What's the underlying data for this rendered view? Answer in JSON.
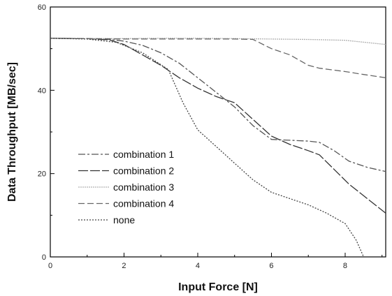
{
  "chart_data": {
    "type": "line",
    "xlabel": "Input Force [N]",
    "ylabel": "Data Throughput [MB/sec]",
    "xlim": [
      0,
      9.1
    ],
    "ylim": [
      0,
      60
    ],
    "xticks": [
      "0",
      "2",
      "4",
      "6",
      "8"
    ],
    "yticks": [
      "0",
      "20",
      "40",
      "60"
    ],
    "grid": false,
    "legend_position": "bottom-left",
    "series": [
      {
        "name": "combination 1",
        "color": "#555555",
        "dash": "10 3 3 3",
        "x": [
          0,
          1.0,
          1.6,
          2.0,
          2.5,
          3.0,
          3.5,
          4.0,
          4.5,
          5.0,
          5.5,
          6.0,
          6.5,
          7.0,
          7.3,
          7.7,
          8.1,
          8.6,
          9.1
        ],
        "y": [
          52.5,
          52.4,
          52.2,
          51.8,
          50.8,
          49.0,
          46.5,
          43.0,
          39.5,
          36.0,
          31.5,
          28.2,
          28.0,
          27.8,
          27.5,
          25.5,
          23.0,
          21.5,
          20.5
        ]
      },
      {
        "name": "combination 2",
        "color": "#333333",
        "dash": "14 3",
        "x": [
          0,
          1.0,
          1.6,
          2.0,
          2.5,
          3.0,
          3.5,
          4.0,
          4.5,
          5.0,
          5.5,
          6.0,
          6.5,
          7.0,
          7.3,
          7.7,
          8.1,
          8.6,
          9.1
        ],
        "y": [
          52.5,
          52.4,
          52.1,
          51.0,
          48.5,
          46.0,
          43.0,
          40.5,
          38.5,
          37.0,
          33.0,
          29.0,
          27.0,
          25.5,
          24.5,
          21.0,
          17.5,
          14.0,
          10.5
        ]
      },
      {
        "name": "combination 3",
        "color": "#b0b0b0",
        "dash": "2 1",
        "x": [
          0,
          1.0,
          2.0,
          3.0,
          4.0,
          5.0,
          6.0,
          7.0,
          8.0,
          9.1
        ],
        "y": [
          52.5,
          52.4,
          52.4,
          52.5,
          52.5,
          52.4,
          52.3,
          52.2,
          52.0,
          51.0
        ]
      },
      {
        "name": "combination 4",
        "color": "#666666",
        "dash": "9 4",
        "x": [
          0,
          1.0,
          2.0,
          3.0,
          4.0,
          5.0,
          5.5,
          6.0,
          6.5,
          7.0,
          7.3,
          8.0,
          8.5,
          9.1
        ],
        "y": [
          52.5,
          52.4,
          52.3,
          52.3,
          52.3,
          52.3,
          52.2,
          50.0,
          48.5,
          46.0,
          45.3,
          44.5,
          43.8,
          43.0
        ]
      },
      {
        "name": "none",
        "color": "#444444",
        "dash": "2 2",
        "x": [
          0,
          1.0,
          1.8,
          2.5,
          3.2,
          3.6,
          4.0,
          4.5,
          5.0,
          5.5,
          6.0,
          6.5,
          7.0,
          7.5,
          8.0,
          8.3,
          8.5
        ],
        "y": [
          52.5,
          52.3,
          51.5,
          49.0,
          45.0,
          37.0,
          30.5,
          26.5,
          22.5,
          18.5,
          15.5,
          14.0,
          12.5,
          10.5,
          8.0,
          4.0,
          0
        ]
      }
    ]
  }
}
